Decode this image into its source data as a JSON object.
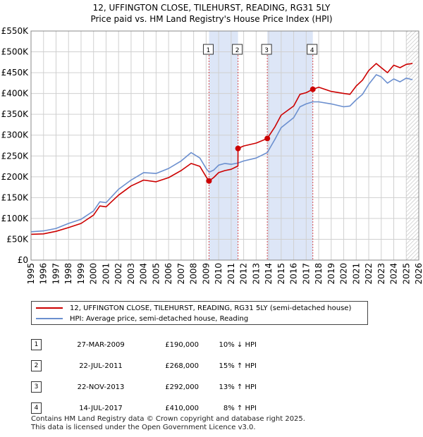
{
  "title_line1": "12, UFFINGTON CLOSE, TILEHURST, READING, RG31 5LY",
  "title_line2": "Price paid vs. HM Land Registry's House Price Index (HPI)",
  "legend": {
    "red_label": "12, UFFINGTON CLOSE, TILEHURST, READING, RG31 5LY (semi-detached house)",
    "blue_label": "HPI: Average price, semi-detached house, Reading"
  },
  "colors": {
    "red": "#cc0000",
    "blue": "#6b8fcf",
    "shade": "#dde6f7",
    "grid": "#d0d0d0",
    "hatch": "#bbbbbb"
  },
  "sales": [
    {
      "num": "1",
      "date": "27-MAR-2009",
      "price": "£190,000",
      "hpi": "10% ↓ HPI"
    },
    {
      "num": "2",
      "date": "22-JUL-2011",
      "price": "£268,000",
      "hpi": "15% ↑ HPI"
    },
    {
      "num": "3",
      "date": "22-NOV-2013",
      "price": "£292,000",
      "hpi": "13% ↑ HPI"
    },
    {
      "num": "4",
      "date": "14-JUL-2017",
      "price": "£410,000",
      "hpi": "8% ↑ HPI"
    }
  ],
  "footer_line1": "Contains HM Land Registry data © Crown copyright and database right 2025.",
  "footer_line2": "This data is licensed under the Open Government Licence v3.0.",
  "chart_data": {
    "type": "line",
    "title": "12, UFFINGTON CLOSE, TILEHURST, READING, RG31 5LY",
    "subtitle": "Price paid vs. HM Land Registry's House Price Index (HPI)",
    "xlabel": "",
    "ylabel": "",
    "xlim": [
      1995,
      2026
    ],
    "ylim": [
      0,
      550000
    ],
    "x_ticks": [
      1995,
      1996,
      1997,
      1998,
      1999,
      2000,
      2001,
      2002,
      2003,
      2004,
      2005,
      2006,
      2007,
      2008,
      2009,
      2010,
      2011,
      2012,
      2013,
      2014,
      2015,
      2016,
      2017,
      2018,
      2019,
      2020,
      2021,
      2022,
      2023,
      2024,
      2025,
      2026
    ],
    "y_ticks": [
      0,
      50000,
      100000,
      150000,
      200000,
      250000,
      300000,
      350000,
      400000,
      450000,
      500000,
      550000
    ],
    "y_tick_labels": [
      "£0",
      "£50K",
      "£100K",
      "£150K",
      "£200K",
      "£250K",
      "£300K",
      "£350K",
      "£400K",
      "£450K",
      "£500K",
      "£550K"
    ],
    "shaded_periods": [
      [
        2009.23,
        2011.55
      ],
      [
        2013.89,
        2017.53
      ]
    ],
    "hatched_from": 2025.0,
    "series": [
      {
        "name": "12, UFFINGTON CLOSE, TILEHURST, READING, RG31 5LY (semi-detached house)",
        "color": "#cc0000",
        "x": [
          1995.0,
          1996.0,
          1997.0,
          1998.0,
          1999.0,
          2000.0,
          2000.5,
          2001.0,
          2002.0,
          2003.0,
          2004.0,
          2005.0,
          2006.0,
          2007.0,
          2007.8,
          2008.5,
          2009.0,
          2009.23,
          2009.6,
          2010.0,
          2010.5,
          2011.0,
          2011.54,
          2011.55,
          2012.0,
          2013.0,
          2013.89,
          2014.5,
          2015.0,
          2016.0,
          2016.5,
          2017.0,
          2017.53,
          2018.0,
          2019.0,
          2020.0,
          2020.5,
          2021.0,
          2021.5,
          2022.0,
          2022.6,
          2023.0,
          2023.5,
          2024.0,
          2024.5,
          2025.0,
          2025.5
        ],
        "y": [
          62000,
          63000,
          69000,
          78000,
          88000,
          108000,
          130000,
          128000,
          156000,
          178000,
          192000,
          188000,
          198000,
          215000,
          232000,
          225000,
          200000,
          190000,
          198000,
          210000,
          215000,
          218000,
          226000,
          268000,
          274000,
          281000,
          292000,
          320000,
          348000,
          370000,
          398000,
          402000,
          410000,
          415000,
          405000,
          400000,
          398000,
          418000,
          432000,
          455000,
          472000,
          462000,
          450000,
          468000,
          462000,
          470000,
          472000
        ],
        "sale_points": [
          [
            2009.23,
            190000
          ],
          [
            2011.55,
            268000
          ],
          [
            2013.89,
            292000
          ],
          [
            2017.53,
            410000
          ]
        ]
      },
      {
        "name": "HPI: Average price, semi-detached house, Reading",
        "color": "#6b8fcf",
        "x": [
          1995.0,
          1996.0,
          1997.0,
          1998.0,
          1999.0,
          2000.0,
          2000.5,
          2001.0,
          2002.0,
          2003.0,
          2004.0,
          2005.0,
          2006.0,
          2007.0,
          2007.8,
          2008.5,
          2009.0,
          2009.23,
          2009.6,
          2010.0,
          2010.5,
          2011.0,
          2011.55,
          2012.0,
          2013.0,
          2013.89,
          2014.5,
          2015.0,
          2016.0,
          2016.5,
          2017.0,
          2017.53,
          2018.0,
          2019.0,
          2020.0,
          2020.5,
          2021.0,
          2021.5,
          2022.0,
          2022.6,
          2023.0,
          2023.5,
          2024.0,
          2024.5,
          2025.0,
          2025.5
        ],
        "y": [
          68000,
          70000,
          76000,
          88000,
          98000,
          118000,
          140000,
          138000,
          170000,
          192000,
          210000,
          208000,
          220000,
          238000,
          258000,
          245000,
          220000,
          211000,
          216000,
          228000,
          232000,
          230000,
          233000,
          238000,
          245000,
          258000,
          290000,
          318000,
          342000,
          368000,
          375000,
          380000,
          380000,
          375000,
          368000,
          370000,
          385000,
          398000,
          422000,
          445000,
          440000,
          425000,
          435000,
          428000,
          437000,
          433000
        ]
      }
    ],
    "annotations": [
      "1",
      "2",
      "3",
      "4"
    ]
  }
}
